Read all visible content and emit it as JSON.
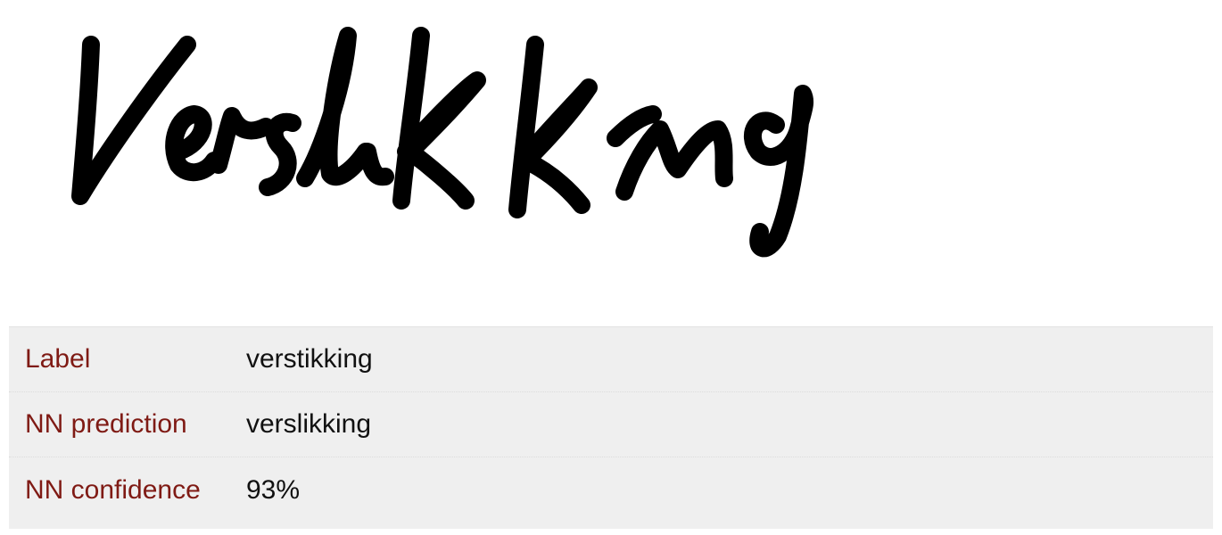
{
  "handwriting": {
    "text": "verslikking",
    "ink_color": "#000000"
  },
  "prediction_table": {
    "rows": [
      {
        "key": "Label",
        "value": "verstikking"
      },
      {
        "key": "NN prediction",
        "value": "verslikking"
      },
      {
        "key": "NN confidence",
        "value": "93%"
      }
    ],
    "key_color": "#7f1a14",
    "background_color": "#efefef"
  }
}
